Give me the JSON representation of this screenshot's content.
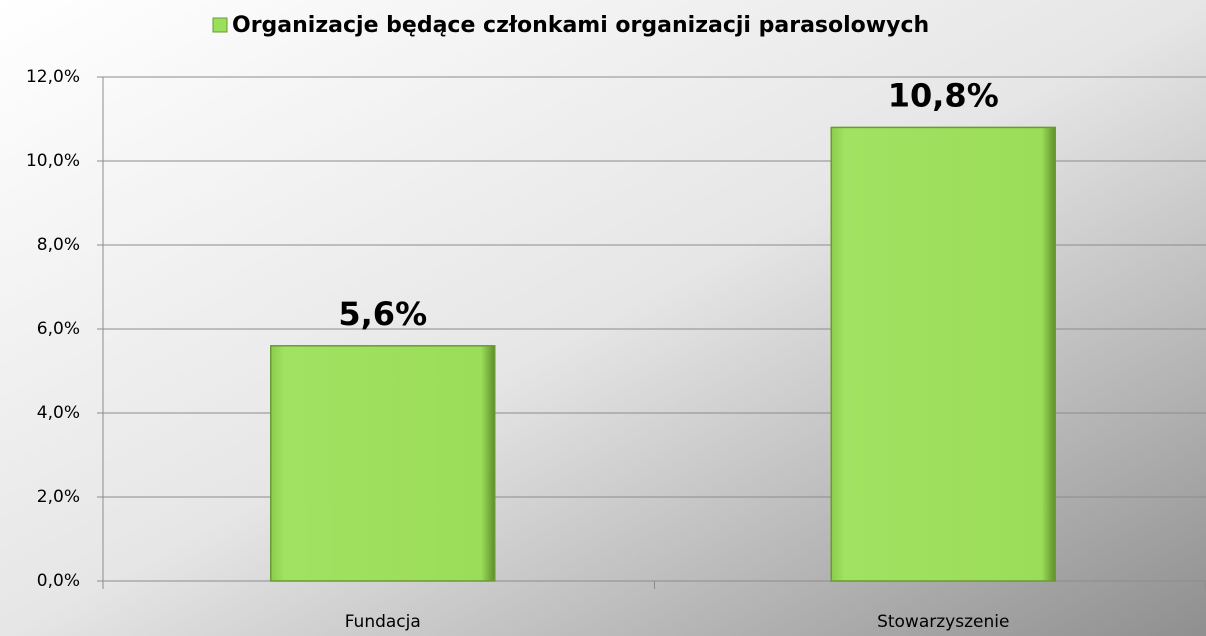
{
  "chart_data": {
    "type": "bar",
    "categories": [
      "Fundacja",
      "Stowarzyszenie"
    ],
    "series": [
      {
        "name": "Organizacje będące członkami organizacji parasolowych",
        "color": "#9be05a",
        "values": [
          5.6,
          10.8
        ],
        "value_labels": [
          "5,6%",
          "10,8%"
        ]
      }
    ],
    "ylim": [
      0,
      12
    ],
    "yticks": [
      {
        "value": 0,
        "label": "0,0%"
      },
      {
        "value": 2,
        "label": "2,0%"
      },
      {
        "value": 4,
        "label": "4,0%"
      },
      {
        "value": 6,
        "label": "6,0%"
      },
      {
        "value": 8,
        "label": "8,0%"
      },
      {
        "value": 10,
        "label": "10,0%"
      },
      {
        "value": 12,
        "label": "12,0%"
      }
    ],
    "grid": true,
    "legend": "top"
  }
}
